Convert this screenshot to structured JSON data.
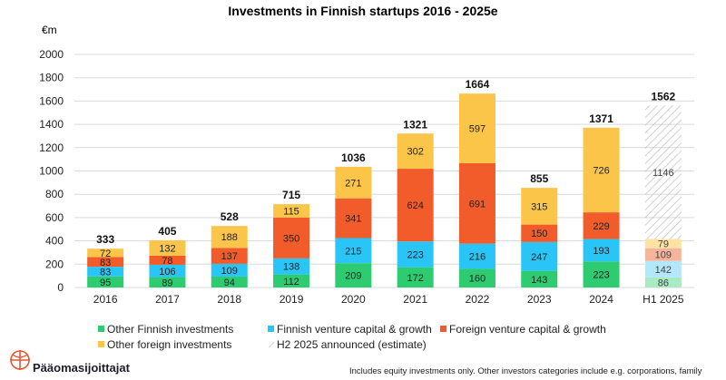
{
  "chart_data": {
    "type": "bar",
    "stacked": true,
    "title": "Investments in Finnish startups 2016 - 2025e",
    "ylabel": "€m",
    "ylim": [
      0,
      2000
    ],
    "yticks": [
      0,
      200,
      400,
      600,
      800,
      1000,
      1200,
      1400,
      1600,
      1800,
      2000
    ],
    "grid": true,
    "legend_position": "bottom-left",
    "categories": [
      "2016",
      "2017",
      "2018",
      "2019",
      "2020",
      "2021",
      "2022",
      "2023",
      "2024",
      "H1 2025"
    ],
    "totals": [
      333,
      405,
      528,
      715,
      1036,
      1321,
      1664,
      855,
      1371,
      1562
    ],
    "series": [
      {
        "name": "Other Finnish investments",
        "color": "#2ecc71",
        "color_h1": "#a8eac2",
        "values": [
          95,
          89,
          94,
          112,
          209,
          172,
          160,
          143,
          223,
          86
        ]
      },
      {
        "name": "Finnish venture capital & growth",
        "color": "#29c5f6",
        "color_h1": "#b3e8fb",
        "values": [
          83,
          106,
          109,
          138,
          215,
          223,
          216,
          247,
          193,
          142
        ]
      },
      {
        "name": "Foreign venture capital & growth",
        "color": "#f25c2a",
        "color_h1": "#f7b49b",
        "values": [
          83,
          78,
          137,
          350,
          341,
          624,
          691,
          150,
          229,
          109
        ]
      },
      {
        "name": "Other foreign investments",
        "color": "#fbc549",
        "color_h1": "#fde3a3",
        "values": [
          72,
          132,
          188,
          115,
          271,
          302,
          597,
          315,
          726,
          79
        ]
      },
      {
        "name": "H2 2025 announced (estimate)",
        "pattern": "hatch",
        "values": [
          null,
          null,
          null,
          null,
          null,
          null,
          null,
          null,
          null,
          1146
        ]
      }
    ]
  },
  "brand": {
    "name": "Pääomasijoittajat",
    "color": "#e8552f"
  },
  "footnote": "Includes equity investments only. Other investors categories include e.g. corporations, family"
}
